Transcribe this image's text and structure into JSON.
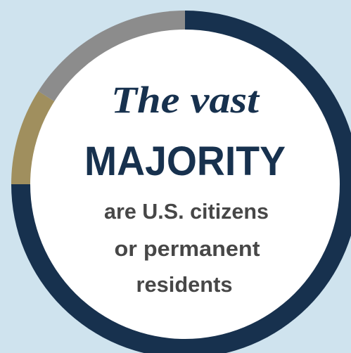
{
  "chart_data": {
    "type": "donut",
    "values": [
      75,
      9,
      16
    ],
    "colors": [
      "#17314e",
      "#a08f5e",
      "#8c8c8c"
    ],
    "title_lines": [
      "The vast",
      "MAJORITY"
    ],
    "annotation_lines": [
      "are U.S. citizens",
      "or permanent",
      "residents"
    ]
  }
}
